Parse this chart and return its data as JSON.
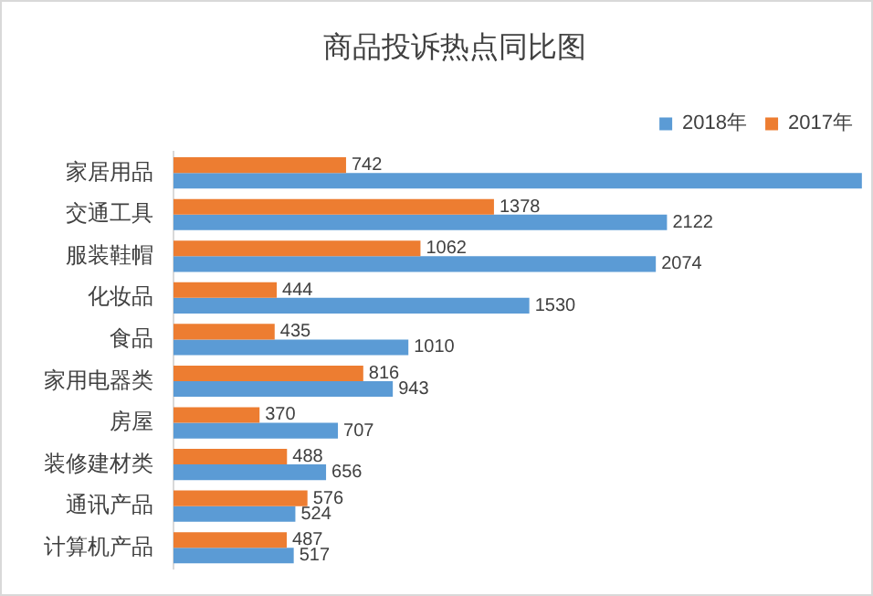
{
  "chart_data": {
    "type": "bar",
    "orientation": "horizontal",
    "title": "商品投诉热点同比图",
    "categories": [
      "家居用品",
      "交通工具",
      "服装鞋帽",
      "化妆品",
      "食品",
      "家用电器类",
      "房屋",
      "装修建材类",
      "通讯产品",
      "计算机产品"
    ],
    "series": [
      {
        "name": "2018年",
        "color": "#5b9bd5",
        "values": [
          2960,
          2122,
          2074,
          1530,
          1010,
          943,
          707,
          656,
          524,
          517
        ],
        "value_labels": [
          null,
          "2122",
          "2074",
          "1530",
          "1010",
          "943",
          "707",
          "656",
          "524",
          "517"
        ]
      },
      {
        "name": "2017年",
        "color": "#ed7d31",
        "values": [
          742,
          1378,
          1062,
          444,
          435,
          816,
          370,
          488,
          576,
          487
        ],
        "value_labels": [
          "742",
          "1378",
          "1062",
          "444",
          "435",
          "816",
          "370",
          "488",
          "576",
          "487"
        ]
      }
    ],
    "legend": "top right"
  }
}
